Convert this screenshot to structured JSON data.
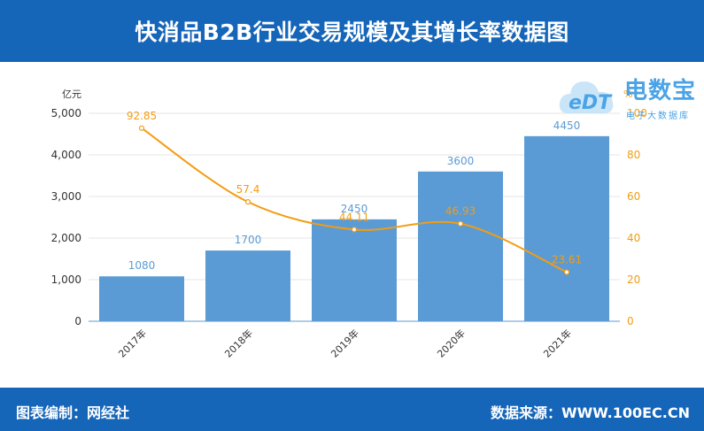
{
  "header": {
    "title": "快消品B2B行业交易规模及其增长率数据图"
  },
  "footer": {
    "credit": "图表编制：网经社",
    "source": "数据来源：WWW.100EC.CN"
  },
  "logo": {
    "name_cn": "电数宝",
    "sub": "电子大数据库",
    "mark": "eDT"
  },
  "colors": {
    "header_bg": "#1565b8",
    "bar": "#5b9bd5",
    "line": "#f39c12",
    "bar_label": "#5b9bd5",
    "line_label": "#f39c12"
  },
  "chart_data": {
    "type": "bar",
    "categories": [
      "2017年",
      "2018年",
      "2019年",
      "2020年",
      "2021年"
    ],
    "series": [
      {
        "values": [
          1080,
          1700,
          2450,
          3600,
          4450
        ],
        "type": "bar",
        "axis": "left"
      },
      {
        "values": [
          92.85,
          57.4,
          44.11,
          46.93,
          23.61
        ],
        "type": "line",
        "axis": "right"
      }
    ],
    "bar_labels": [
      "1080",
      "1700",
      "2450",
      "3600",
      "4450"
    ],
    "line_labels": [
      "92.85",
      "57.4",
      "44.11",
      "46.93",
      "23.61"
    ],
    "left_axis": {
      "unit": "亿元",
      "ylim": [
        0,
        5000
      ],
      "ticks": [
        0,
        1000,
        2000,
        3000,
        4000,
        5000
      ],
      "tick_labels": [
        "0",
        "1,000",
        "2,000",
        "3,000",
        "4,000",
        "5,000"
      ]
    },
    "right_axis": {
      "unit": "%",
      "ylim": [
        0,
        100
      ],
      "ticks": [
        0,
        20,
        40,
        60,
        80,
        100
      ],
      "tick_labels": [
        "0",
        "20",
        "40",
        "60",
        "80",
        "100"
      ]
    },
    "grid": true,
    "legend": "none"
  }
}
